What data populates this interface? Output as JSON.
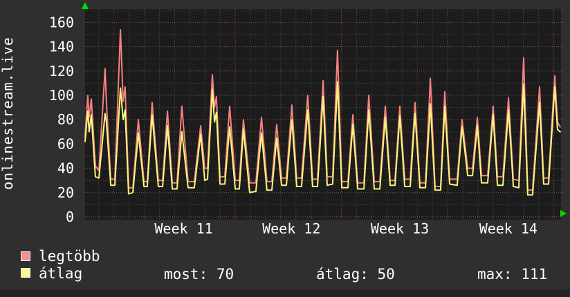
{
  "title": "onlinestream.live",
  "legend": {
    "items": [
      {
        "label": "legtöbb",
        "color": "#f59090"
      },
      {
        "label": "átlag",
        "color": "#fafa8c"
      }
    ]
  },
  "stats": {
    "most_label": "most:",
    "most_value": "70",
    "atlag_label": "átlag:",
    "atlag_value": "50",
    "max_label": "max:",
    "max_value": "111"
  },
  "colors": {
    "bg": "#2f2f2f",
    "plot_bg": "#1c1c1c",
    "footer_bg": "#242424",
    "text": "#ffffff",
    "grid_major": "#c25454",
    "grid_minor": "#909090",
    "arrow": "#00dd00",
    "line_max": "#f88080",
    "line_avg": "#f7f77c"
  },
  "chart_data": {
    "type": "line",
    "title": "onlinestream.live",
    "x_unit": "days (time axis, ISO weeks 11-14, 1 vertical minor gridline = 1 day)",
    "y_unit": "viewers",
    "ylim": [
      0,
      171
    ],
    "yticks": [
      0,
      20,
      40,
      60,
      80,
      100,
      120,
      140,
      160
    ],
    "grid_minor_y_step": 10,
    "week_ticks": [
      {
        "label": "Week 11",
        "day_center": 6.5
      },
      {
        "label": "Week 12",
        "day_center": 13.6
      },
      {
        "label": "Week 13",
        "day_center": 20.75
      },
      {
        "label": "Week 14",
        "day_center": 27.9
      }
    ],
    "week_boundary_days": [
      2.9,
      9.9,
      16.9,
      23.9,
      30.9
    ],
    "day_span": [
      0,
      31.32
    ],
    "legend_position": "bottom-left",
    "stats_row": {
      "most": 70,
      "atlag": 50,
      "max": 111
    },
    "series": [
      {
        "name": "legtöbb",
        "color": "#f88080",
        "points": [
          [
            0,
            66
          ],
          [
            0.18,
            100
          ],
          [
            0.27,
            82
          ],
          [
            0.41,
            97
          ],
          [
            0.68,
            42
          ],
          [
            0.91,
            38
          ],
          [
            1.32,
            122
          ],
          [
            1.41,
            93
          ],
          [
            1.69,
            31
          ],
          [
            1.96,
            31
          ],
          [
            2.33,
            154
          ],
          [
            2.51,
            95
          ],
          [
            2.64,
            107
          ],
          [
            2.87,
            24
          ],
          [
            3.15,
            24
          ],
          [
            3.51,
            80
          ],
          [
            3.88,
            29
          ],
          [
            4.1,
            29
          ],
          [
            4.42,
            94
          ],
          [
            4.83,
            30
          ],
          [
            5.11,
            30
          ],
          [
            5.43,
            87
          ],
          [
            5.75,
            28
          ],
          [
            6.06,
            28
          ],
          [
            6.38,
            91
          ],
          [
            6.79,
            29
          ],
          [
            7.2,
            29
          ],
          [
            7.62,
            75
          ],
          [
            7.89,
            40
          ],
          [
            8.07,
            40
          ],
          [
            8.39,
            117
          ],
          [
            8.53,
            90
          ],
          [
            8.66,
            99
          ],
          [
            8.89,
            33
          ],
          [
            9.21,
            33
          ],
          [
            9.53,
            91
          ],
          [
            9.9,
            30
          ],
          [
            10.17,
            30
          ],
          [
            10.44,
            80
          ],
          [
            10.85,
            28
          ],
          [
            11.26,
            28
          ],
          [
            11.63,
            82
          ],
          [
            11.99,
            29
          ],
          [
            12.31,
            29
          ],
          [
            12.63,
            76
          ],
          [
            12.95,
            32
          ],
          [
            13.27,
            32
          ],
          [
            13.63,
            92
          ],
          [
            13.95,
            32
          ],
          [
            14.27,
            32
          ],
          [
            14.68,
            100
          ],
          [
            15.0,
            31
          ],
          [
            15.32,
            31
          ],
          [
            15.69,
            112
          ],
          [
            15.96,
            33
          ],
          [
            16.32,
            33
          ],
          [
            16.64,
            137
          ],
          [
            16.92,
            29
          ],
          [
            17.33,
            29
          ],
          [
            17.65,
            84
          ],
          [
            17.97,
            28
          ],
          [
            18.38,
            28
          ],
          [
            18.7,
            100
          ],
          [
            19.06,
            29
          ],
          [
            19.43,
            29
          ],
          [
            19.79,
            91
          ],
          [
            20.11,
            30
          ],
          [
            20.43,
            30
          ],
          [
            20.75,
            91
          ],
          [
            21.07,
            31
          ],
          [
            21.43,
            31
          ],
          [
            21.75,
            94
          ],
          [
            22.07,
            28
          ],
          [
            22.44,
            28
          ],
          [
            22.76,
            114
          ],
          [
            23.07,
            25
          ],
          [
            23.44,
            25
          ],
          [
            23.71,
            103
          ],
          [
            24.03,
            31
          ],
          [
            24.53,
            31
          ],
          [
            24.85,
            80
          ],
          [
            25.22,
            40
          ],
          [
            25.54,
            40
          ],
          [
            25.86,
            82
          ],
          [
            26.13,
            34
          ],
          [
            26.54,
            34
          ],
          [
            26.9,
            91
          ],
          [
            27.18,
            33
          ],
          [
            27.54,
            33
          ],
          [
            27.91,
            98
          ],
          [
            28.23,
            31
          ],
          [
            28.59,
            30
          ],
          [
            28.91,
            131
          ],
          [
            29.18,
            22
          ],
          [
            29.5,
            22
          ],
          [
            29.96,
            107
          ],
          [
            30.23,
            32
          ],
          [
            30.55,
            32
          ],
          [
            30.96,
            116
          ],
          [
            31.14,
            78
          ],
          [
            31.32,
            74
          ]
        ]
      },
      {
        "name": "átlag",
        "color": "#f7f77c",
        "points": [
          [
            0,
            62
          ],
          [
            0.18,
            87
          ],
          [
            0.27,
            70
          ],
          [
            0.41,
            84
          ],
          [
            0.68,
            33
          ],
          [
            0.91,
            32
          ],
          [
            1.32,
            85
          ],
          [
            1.41,
            78
          ],
          [
            1.69,
            26
          ],
          [
            1.96,
            26
          ],
          [
            2.33,
            106
          ],
          [
            2.51,
            80
          ],
          [
            2.64,
            88
          ],
          [
            2.87,
            19
          ],
          [
            3.15,
            20
          ],
          [
            3.51,
            69
          ],
          [
            3.88,
            25
          ],
          [
            4.1,
            25
          ],
          [
            4.42,
            84
          ],
          [
            4.83,
            25
          ],
          [
            5.11,
            25
          ],
          [
            5.43,
            75
          ],
          [
            5.75,
            23
          ],
          [
            6.06,
            23
          ],
          [
            6.38,
            70
          ],
          [
            6.79,
            24
          ],
          [
            7.2,
            24
          ],
          [
            7.62,
            68
          ],
          [
            7.89,
            30
          ],
          [
            8.07,
            31
          ],
          [
            8.39,
            105
          ],
          [
            8.53,
            78
          ],
          [
            8.66,
            86
          ],
          [
            8.89,
            27
          ],
          [
            9.21,
            27
          ],
          [
            9.53,
            74
          ],
          [
            9.9,
            23
          ],
          [
            10.17,
            23
          ],
          [
            10.44,
            72
          ],
          [
            10.85,
            20
          ],
          [
            11.26,
            21
          ],
          [
            11.63,
            69
          ],
          [
            11.99,
            22
          ],
          [
            12.31,
            22
          ],
          [
            12.63,
            65
          ],
          [
            12.95,
            26
          ],
          [
            13.27,
            26
          ],
          [
            13.63,
            80
          ],
          [
            13.95,
            25
          ],
          [
            14.27,
            25
          ],
          [
            14.68,
            88
          ],
          [
            15.0,
            25
          ],
          [
            15.32,
            25
          ],
          [
            15.69,
            99
          ],
          [
            15.96,
            26
          ],
          [
            16.32,
            27
          ],
          [
            16.64,
            111
          ],
          [
            16.92,
            24
          ],
          [
            17.33,
            24
          ],
          [
            17.65,
            76
          ],
          [
            17.97,
            23
          ],
          [
            18.38,
            23
          ],
          [
            18.7,
            88
          ],
          [
            19.06,
            23
          ],
          [
            19.43,
            23
          ],
          [
            19.79,
            82
          ],
          [
            20.11,
            26
          ],
          [
            20.43,
            26
          ],
          [
            20.75,
            83
          ],
          [
            21.07,
            25
          ],
          [
            21.43,
            25
          ],
          [
            21.75,
            85
          ],
          [
            22.07,
            24
          ],
          [
            22.44,
            24
          ],
          [
            22.76,
            93
          ],
          [
            23.07,
            22
          ],
          [
            23.44,
            22
          ],
          [
            23.71,
            91
          ],
          [
            24.03,
            27
          ],
          [
            24.53,
            26
          ],
          [
            24.85,
            74
          ],
          [
            25.22,
            34
          ],
          [
            25.54,
            34
          ],
          [
            25.86,
            75
          ],
          [
            26.13,
            28
          ],
          [
            26.54,
            28
          ],
          [
            26.9,
            84
          ],
          [
            27.18,
            26
          ],
          [
            27.54,
            26
          ],
          [
            27.91,
            88
          ],
          [
            28.23,
            25
          ],
          [
            28.59,
            24
          ],
          [
            28.91,
            109
          ],
          [
            29.18,
            18
          ],
          [
            29.5,
            18
          ],
          [
            29.96,
            94
          ],
          [
            30.23,
            27
          ],
          [
            30.55,
            27
          ],
          [
            30.96,
            107
          ],
          [
            31.14,
            72
          ],
          [
            31.32,
            70
          ]
        ]
      }
    ]
  }
}
